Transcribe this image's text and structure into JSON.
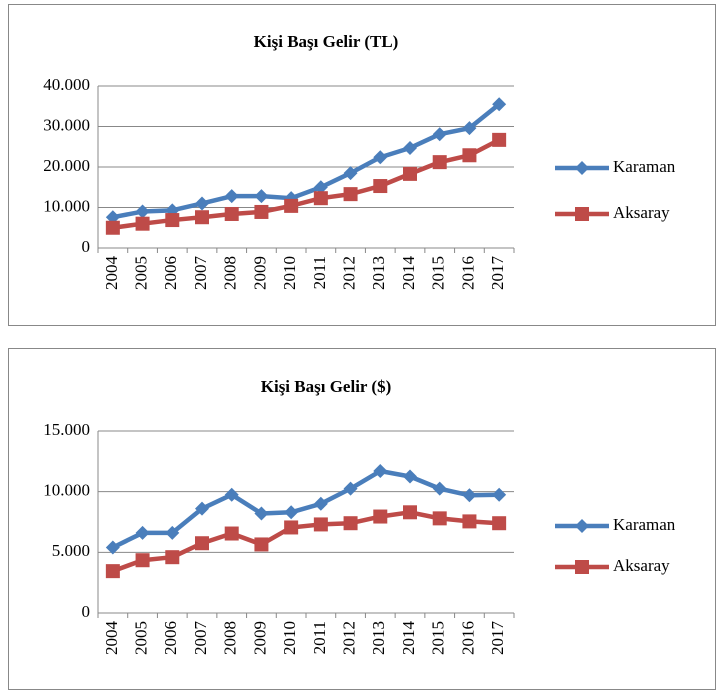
{
  "chart_data": [
    {
      "type": "line",
      "title": "Kişi Başı Gelir (TL)",
      "categories": [
        "2004",
        "2005",
        "2006",
        "2007",
        "2008",
        "2009",
        "2010",
        "2011",
        "2012",
        "2013",
        "2014",
        "2015",
        "2016",
        "2017"
      ],
      "series": [
        {
          "name": "Karaman",
          "color": "#4a7ebb",
          "marker": "diamond",
          "values": [
            7600,
            9000,
            9300,
            11000,
            12800,
            12800,
            12300,
            15000,
            18500,
            22400,
            24700,
            28100,
            29600,
            35500
          ]
        },
        {
          "name": "Aksaray",
          "color": "#be4b48",
          "marker": "square",
          "values": [
            5000,
            6000,
            6900,
            7600,
            8400,
            8900,
            10400,
            12300,
            13300,
            15300,
            18300,
            21200,
            22900,
            26700
          ]
        }
      ],
      "ylim": [
        0,
        40000
      ],
      "yticks": [
        0,
        {
          "value": 10000,
          "label": "10.000"
        },
        {
          "value": 20000,
          "label": "20.000"
        },
        {
          "value": 30000,
          "label": "30.000"
        },
        {
          "value": 40000,
          "label": "40.000"
        }
      ],
      "grid": true,
      "legend": "right"
    },
    {
      "type": "line",
      "title": "Kişi Başı Gelir ($)",
      "categories": [
        "2004",
        "2005",
        "2006",
        "2007",
        "2008",
        "2009",
        "2010",
        "2011",
        "2012",
        "2013",
        "2014",
        "2015",
        "2016",
        "2017"
      ],
      "series": [
        {
          "name": "Karaman",
          "color": "#4a7ebb",
          "marker": "diamond",
          "values": [
            5400,
            6600,
            6600,
            8600,
            9750,
            8200,
            8300,
            9000,
            10250,
            11700,
            11250,
            10250,
            9700,
            9750
          ]
        },
        {
          "name": "Aksaray",
          "color": "#be4b48",
          "marker": "square",
          "values": [
            3450,
            4350,
            4600,
            5750,
            6550,
            5650,
            7050,
            7300,
            7400,
            7950,
            8300,
            7800,
            7550,
            7400
          ]
        }
      ],
      "ylim": [
        0,
        15000
      ],
      "yticks": [
        0,
        {
          "value": 5000,
          "label": "5.000"
        },
        {
          "value": 10000,
          "label": "10.000"
        },
        {
          "value": 15000,
          "label": "15.000"
        }
      ],
      "grid": true,
      "legend": "right"
    }
  ]
}
